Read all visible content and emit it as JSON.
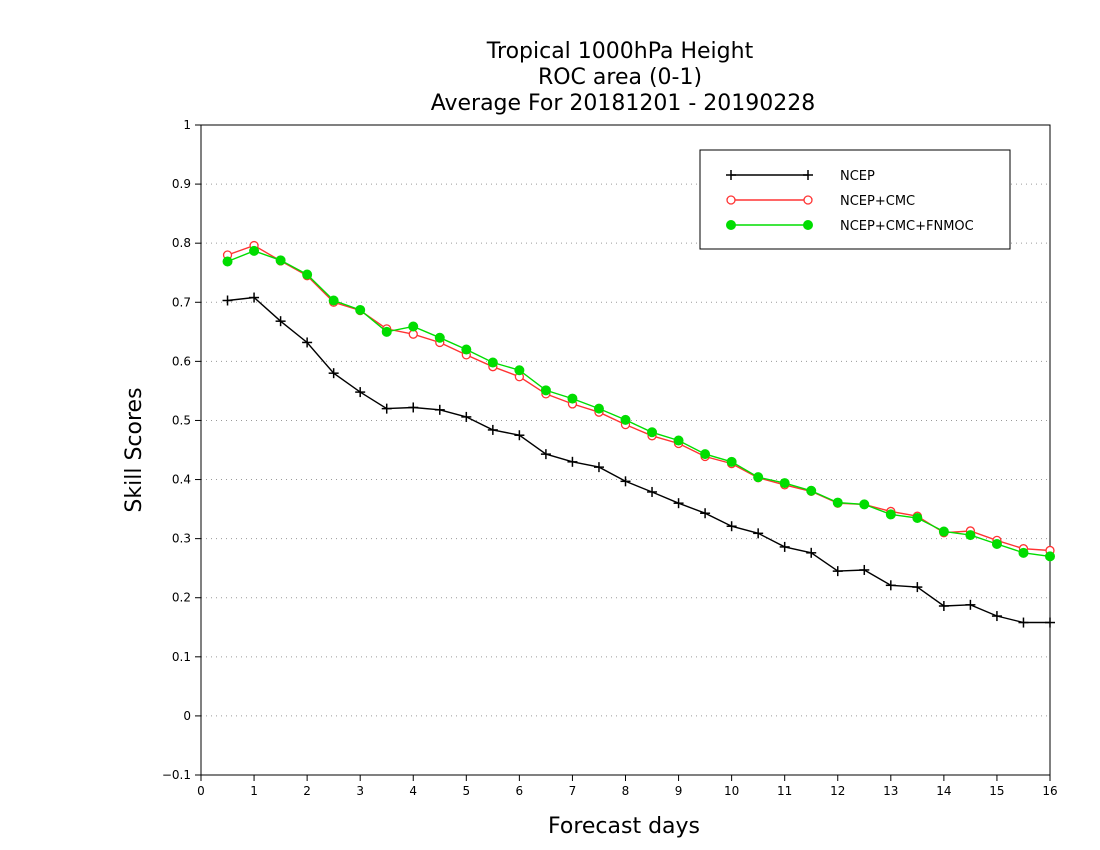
{
  "chart_data": {
    "type": "line",
    "title": [
      "Tropical 1000hPa Height",
      "ROC area (0-1)",
      "Average For 20181201 - 20190228"
    ],
    "xlabel": "Forecast days",
    "ylabel": "Skill Scores",
    "xlim": [
      0,
      16
    ],
    "ylim": [
      -0.1,
      1
    ],
    "xticks": [
      "0",
      "1",
      "2",
      "3",
      "4",
      "5",
      "6",
      "7",
      "8",
      "9",
      "10",
      "11",
      "12",
      "13",
      "14",
      "15",
      "16"
    ],
    "yticks": [
      "−0.1",
      "0",
      "0.1",
      "0.2",
      "0.3",
      "0.4",
      "0.5",
      "0.6",
      "0.7",
      "0.8",
      "0.9",
      "1"
    ],
    "grid": true,
    "legend_position": "top-right",
    "x": [
      0.5,
      1,
      1.5,
      2,
      2.5,
      3,
      3.5,
      4,
      4.5,
      5,
      5.5,
      6,
      6.5,
      7,
      7.5,
      8,
      8.5,
      9,
      9.5,
      10,
      10.5,
      11,
      11.5,
      12,
      12.5,
      13,
      13.5,
      14,
      14.5,
      15,
      15.5,
      16
    ],
    "series": [
      {
        "name": "NCEP",
        "color": "#000000",
        "marker": "plus",
        "values": [
          0.703,
          0.708,
          0.668,
          0.632,
          0.58,
          0.548,
          0.52,
          0.522,
          0.518,
          0.506,
          0.484,
          0.475,
          0.443,
          0.43,
          0.421,
          0.397,
          0.379,
          0.36,
          0.343,
          0.321,
          0.309,
          0.286,
          0.276,
          0.245,
          0.247,
          0.221,
          0.218,
          0.186,
          0.188,
          0.169,
          0.158,
          0.158
        ]
      },
      {
        "name": "NCEP+CMC",
        "color": "#ff3333",
        "marker": "open-circle",
        "values": [
          0.78,
          0.796,
          0.77,
          0.745,
          0.7,
          0.686,
          0.655,
          0.646,
          0.632,
          0.611,
          0.591,
          0.574,
          0.545,
          0.528,
          0.514,
          0.493,
          0.474,
          0.461,
          0.439,
          0.427,
          0.403,
          0.391,
          0.38,
          0.36,
          0.358,
          0.346,
          0.338,
          0.31,
          0.313,
          0.297,
          0.283,
          0.28
        ]
      },
      {
        "name": "NCEP+CMC+FNMOC",
        "color": "#00dd00",
        "marker": "filled-circle",
        "values": [
          0.769,
          0.787,
          0.771,
          0.747,
          0.703,
          0.687,
          0.65,
          0.659,
          0.64,
          0.62,
          0.598,
          0.585,
          0.551,
          0.537,
          0.52,
          0.501,
          0.48,
          0.466,
          0.443,
          0.43,
          0.404,
          0.394,
          0.381,
          0.361,
          0.358,
          0.341,
          0.335,
          0.312,
          0.306,
          0.291,
          0.276,
          0.27
        ]
      }
    ]
  }
}
